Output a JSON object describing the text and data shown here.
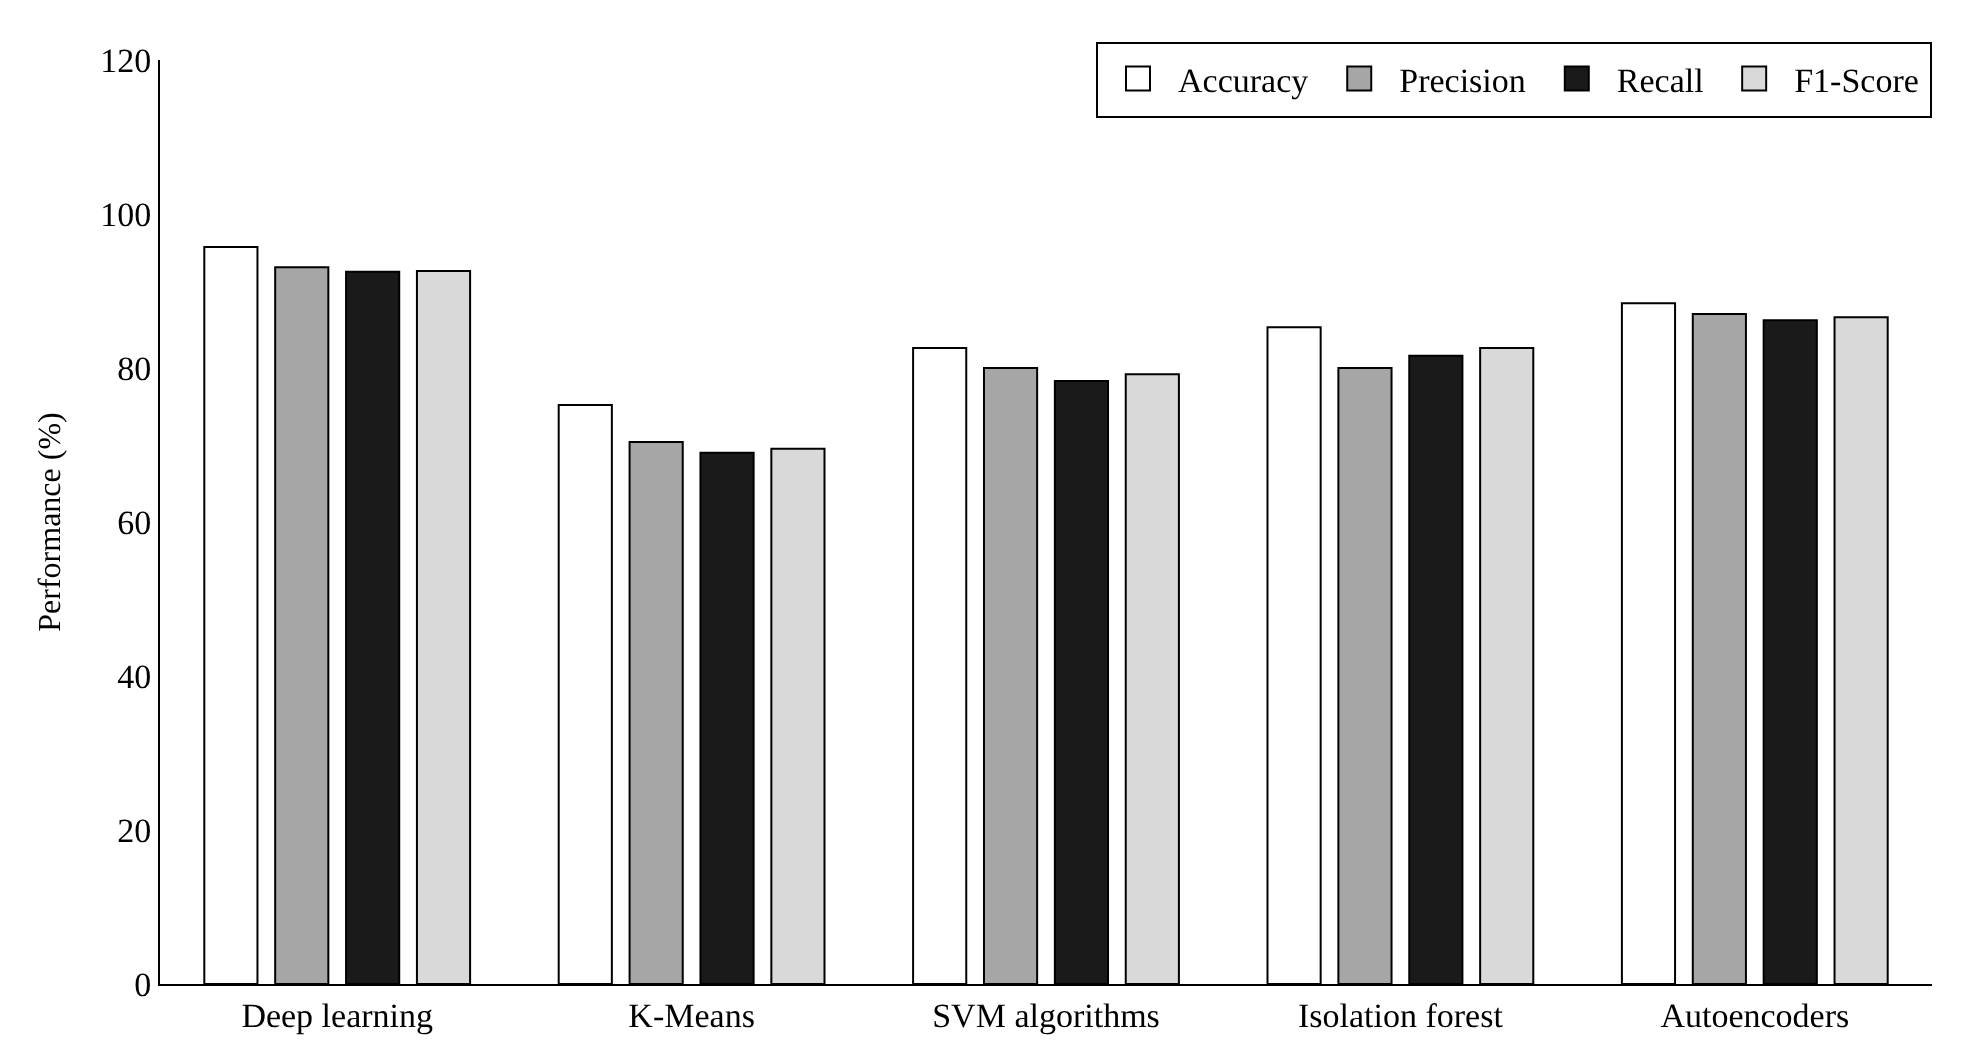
{
  "chart_data": {
    "type": "bar",
    "ylabel": "Performance (%)",
    "categories": [
      "Deep learning",
      "K-Means",
      "SVM algorithms",
      "Isolation forest",
      "Autoencoders"
    ],
    "series": [
      {
        "name": "Accuracy",
        "color": "#ffffff",
        "values": [
          95.7,
          75.2,
          82.6,
          85.3,
          88.4
        ]
      },
      {
        "name": "Precision",
        "color": "#a6a6a6",
        "values": [
          93.1,
          70.4,
          80.0,
          80.0,
          87.0
        ]
      },
      {
        "name": "Recall",
        "color": "#1a1a1a",
        "values": [
          92.5,
          69.0,
          78.3,
          81.6,
          86.2
        ]
      },
      {
        "name": "F1-Score",
        "color": "#d9d9d9",
        "values": [
          92.6,
          69.5,
          79.2,
          82.6,
          86.6
        ]
      }
    ],
    "ylim": [
      0,
      120
    ],
    "yticks": [
      0,
      20,
      40,
      60,
      80,
      100,
      120
    ],
    "legend": "top right"
  }
}
